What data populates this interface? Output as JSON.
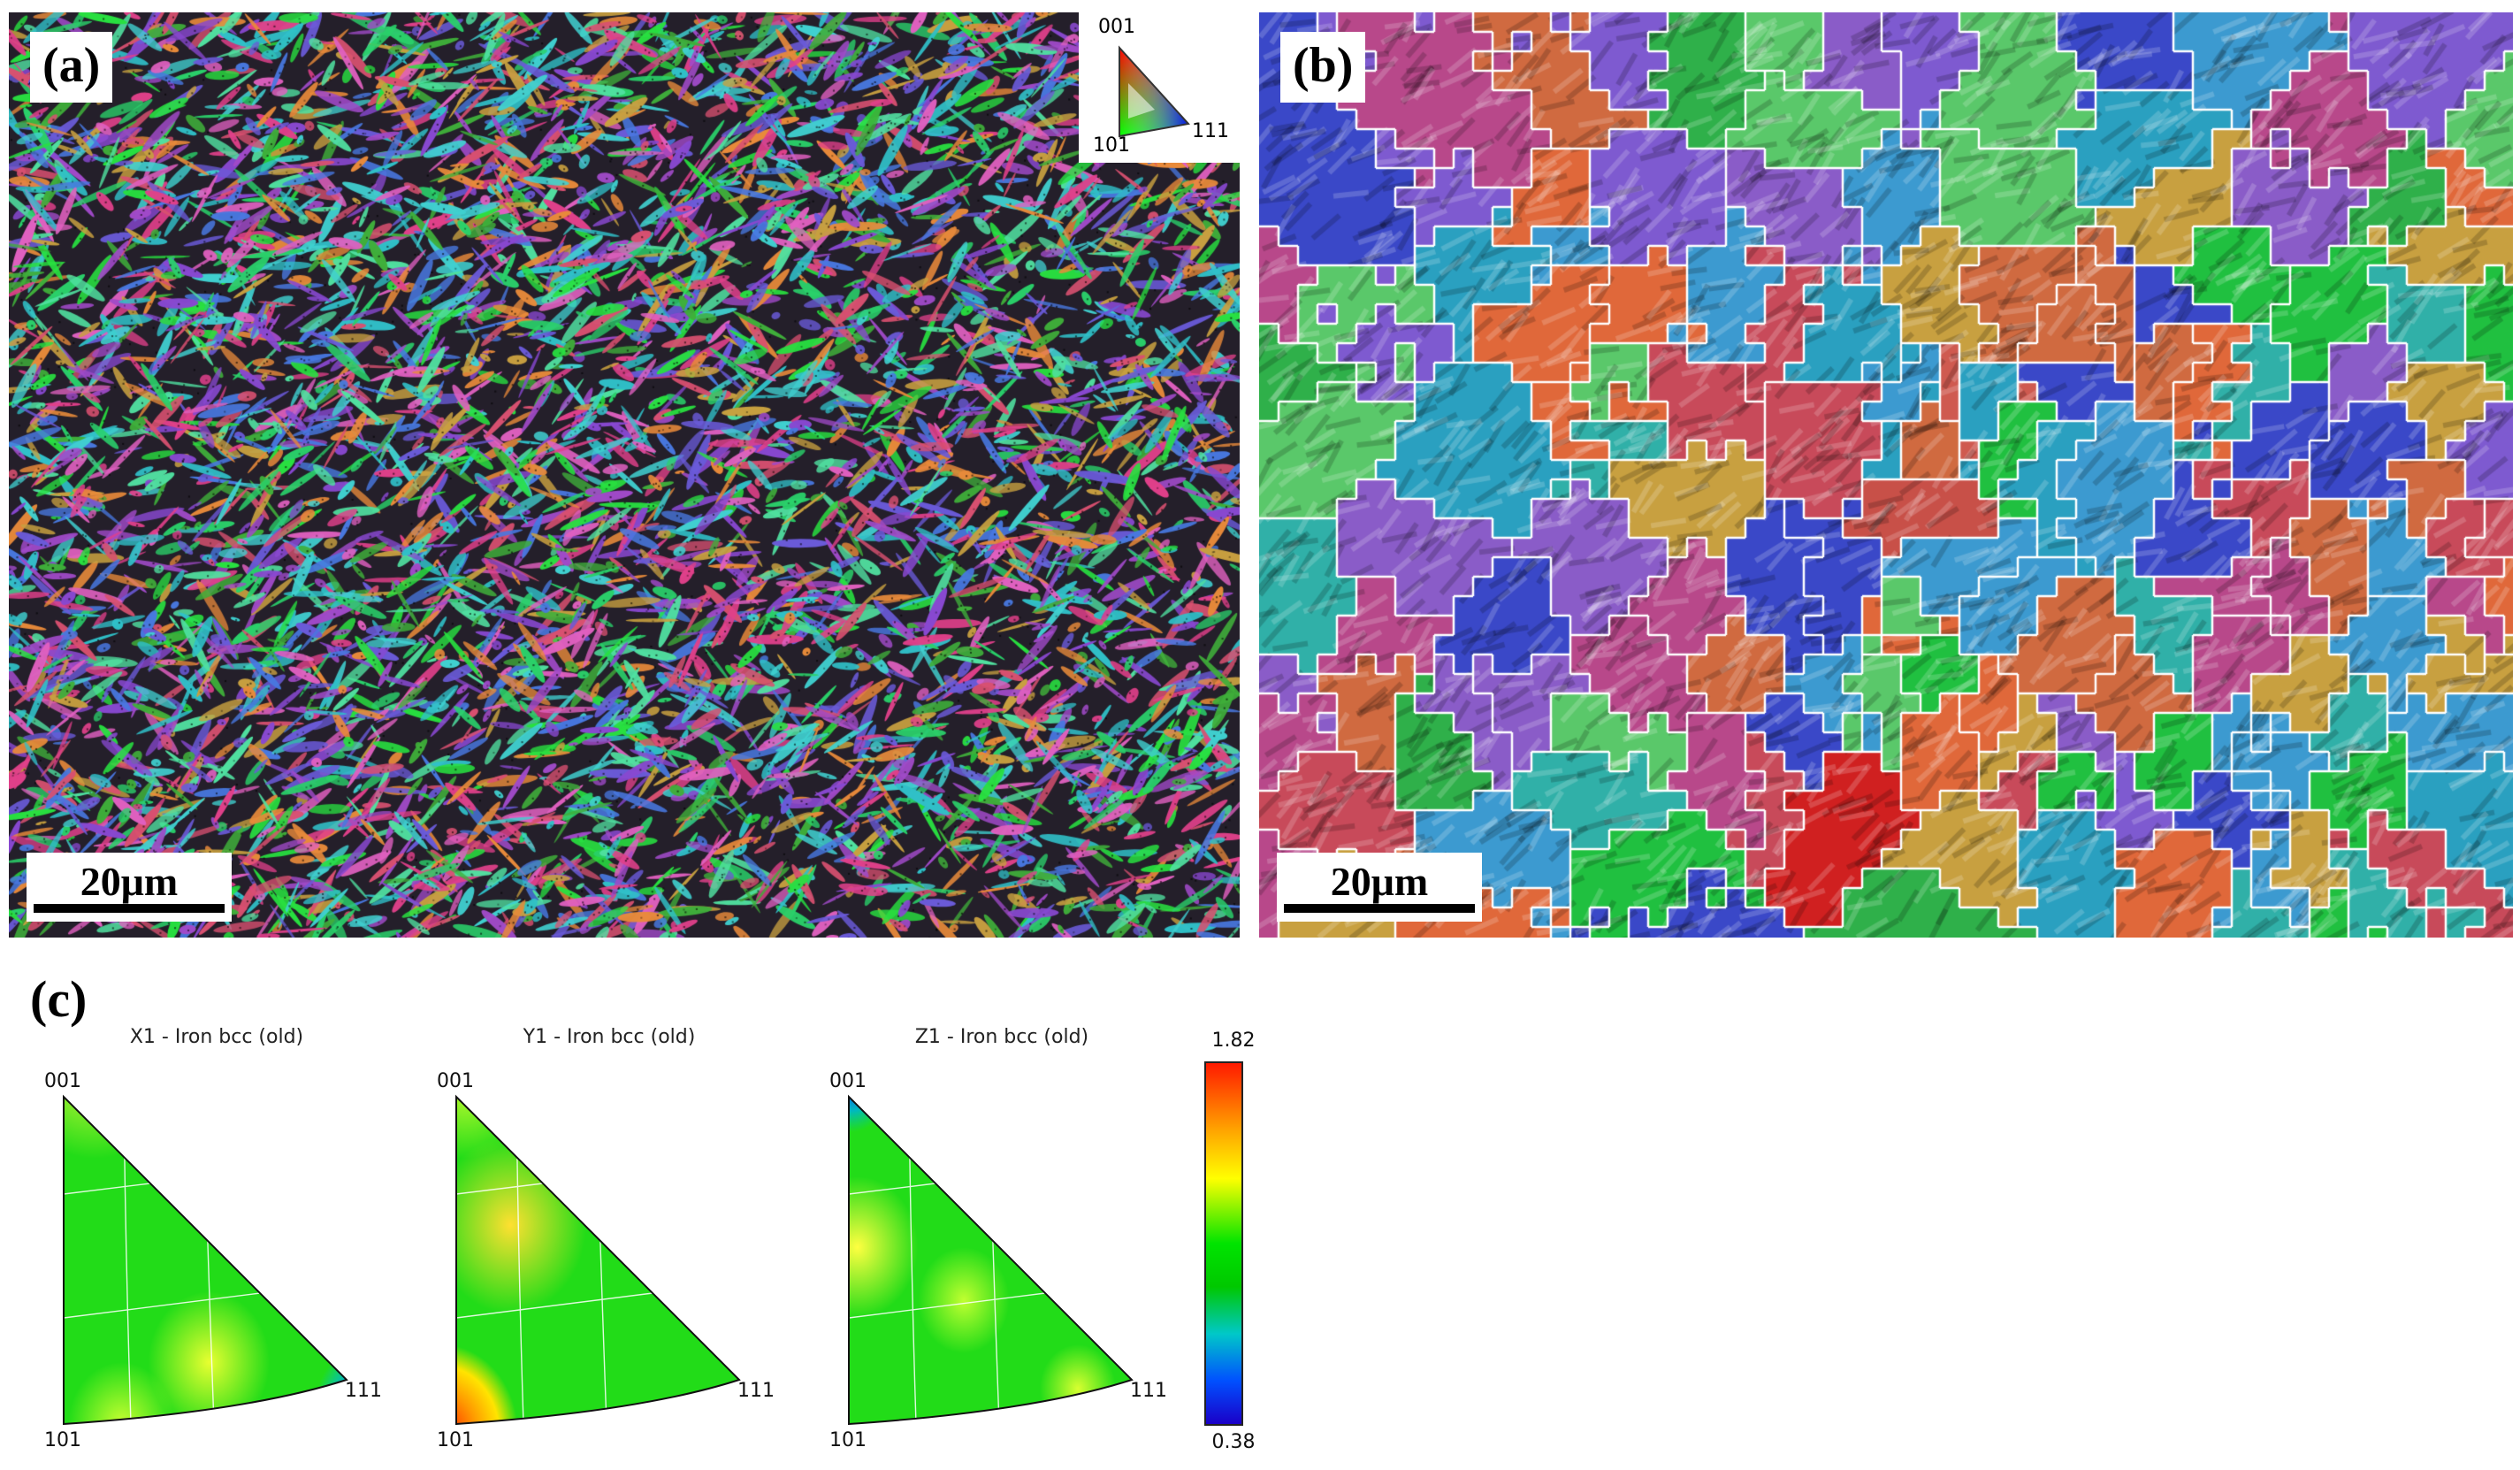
{
  "panels": {
    "a": {
      "label": "(a)",
      "scale_bar": "20μm",
      "legend": {
        "top": "001",
        "left_bottom": "101",
        "right": "111"
      }
    },
    "b": {
      "label": "(b)",
      "scale_bar": "20μm"
    },
    "c": {
      "label": "(c)",
      "plots": [
        {
          "title": "X1 - Iron bcc (old)",
          "top": "001",
          "bottom": "101",
          "right": "111"
        },
        {
          "title": "Y1 - Iron bcc (old)",
          "top": "001",
          "bottom": "101",
          "right": "111"
        },
        {
          "title": "Z1 - Iron bcc (old)",
          "top": "001",
          "bottom": "101",
          "right": "111"
        }
      ],
      "colorbar": {
        "max": "1.82",
        "min": "0.38"
      }
    }
  }
}
